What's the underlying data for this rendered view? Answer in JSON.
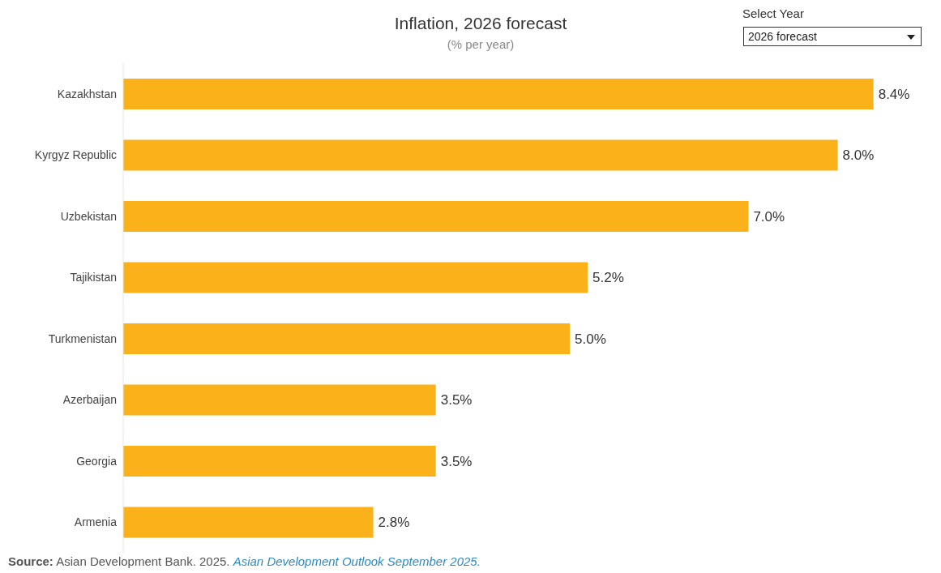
{
  "chart_data": {
    "type": "bar",
    "orientation": "horizontal",
    "title": "Inflation, 2026 forecast",
    "subtitle": "(% per year)",
    "categories": [
      "Kazakhstan",
      "Kyrgyz Republic",
      "Uzbekistan",
      "Tajikistan",
      "Turkmenistan",
      "Azerbaijan",
      "Georgia",
      "Armenia"
    ],
    "values": [
      8.4,
      8.0,
      7.0,
      5.2,
      5.0,
      3.5,
      3.5,
      2.8
    ],
    "value_labels": [
      "8.4%",
      "8.0%",
      "7.0%",
      "5.2%",
      "5.0%",
      "3.5%",
      "3.5%",
      "2.8%"
    ],
    "color": "#fbb21a",
    "annotations": [
      "Select Year",
      "2026 forecast",
      "Source:",
      "Asian Development Bank. 2025.",
      "Asian Development Outlook September 2025."
    ]
  }
}
